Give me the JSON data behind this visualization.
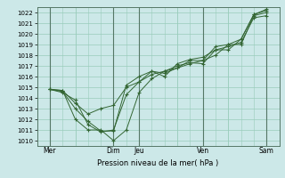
{
  "xlabel": "Pression niveau de la mer( hPa )",
  "ylim": [
    1009.5,
    1022.5
  ],
  "yticks": [
    1010,
    1011,
    1012,
    1013,
    1014,
    1015,
    1016,
    1017,
    1018,
    1019,
    1020,
    1021,
    1022
  ],
  "xlim": [
    0,
    9.5
  ],
  "background_color": "#cce8e8",
  "grid_color": "#99ccbb",
  "line_color": "#336633",
  "day_labels": [
    "Mer",
    "",
    "Dim",
    "Jeu",
    "",
    "Ven",
    "",
    "Sam"
  ],
  "day_positions": [
    0.5,
    1.5,
    3.0,
    4.0,
    5.5,
    6.5,
    7.5,
    9.0
  ],
  "vline_positions": [
    0.5,
    3.0,
    4.0,
    6.5,
    9.0
  ],
  "series": [
    {
      "x": [
        0.5,
        1.0,
        1.5,
        2.0,
        2.5,
        3.0,
        3.5,
        4.0,
        4.5,
        5.0,
        5.5,
        6.0,
        6.5,
        7.0,
        7.5,
        8.0,
        8.5,
        9.0
      ],
      "y": [
        1014.8,
        1014.7,
        1012.0,
        1011.0,
        1011.0,
        1010.0,
        1011.0,
        1014.5,
        1015.8,
        1016.5,
        1016.8,
        1017.2,
        1017.5,
        1018.0,
        1019.0,
        1019.0,
        1021.7,
        1022.0
      ]
    },
    {
      "x": [
        0.5,
        1.0,
        1.5,
        2.0,
        2.5,
        3.0,
        3.5,
        4.0,
        4.5,
        5.0,
        5.5,
        6.0,
        6.5,
        7.0,
        7.5,
        8.0,
        8.5,
        9.0
      ],
      "y": [
        1014.8,
        1014.7,
        1013.5,
        1012.5,
        1013.0,
        1013.3,
        1015.0,
        1015.5,
        1016.2,
        1016.5,
        1017.0,
        1017.3,
        1017.2,
        1018.5,
        1018.8,
        1019.2,
        1021.5,
        1021.7
      ]
    },
    {
      "x": [
        0.5,
        1.0,
        1.5,
        2.0,
        2.5,
        3.0,
        3.5,
        4.0,
        4.5,
        5.0,
        5.5,
        6.0,
        6.5,
        7.0,
        7.5,
        8.0,
        8.5,
        9.0
      ],
      "y": [
        1014.8,
        1014.5,
        1013.8,
        1011.5,
        1010.8,
        1011.0,
        1014.3,
        1015.5,
        1016.5,
        1016.3,
        1016.8,
        1017.5,
        1017.5,
        1018.8,
        1019.0,
        1019.5,
        1021.8,
        1022.2
      ]
    },
    {
      "x": [
        0.5,
        1.0,
        1.5,
        2.0,
        2.5,
        3.0,
        3.5,
        4.0,
        4.5,
        5.0,
        5.5,
        6.0,
        6.5,
        7.0,
        7.5,
        8.0,
        8.5,
        9.0
      ],
      "y": [
        1014.8,
        1014.6,
        1013.0,
        1011.8,
        1010.9,
        1010.9,
        1015.2,
        1016.0,
        1016.5,
        1016.0,
        1017.2,
        1017.6,
        1017.8,
        1018.5,
        1018.5,
        1019.5,
        1021.8,
        1022.3
      ]
    }
  ]
}
